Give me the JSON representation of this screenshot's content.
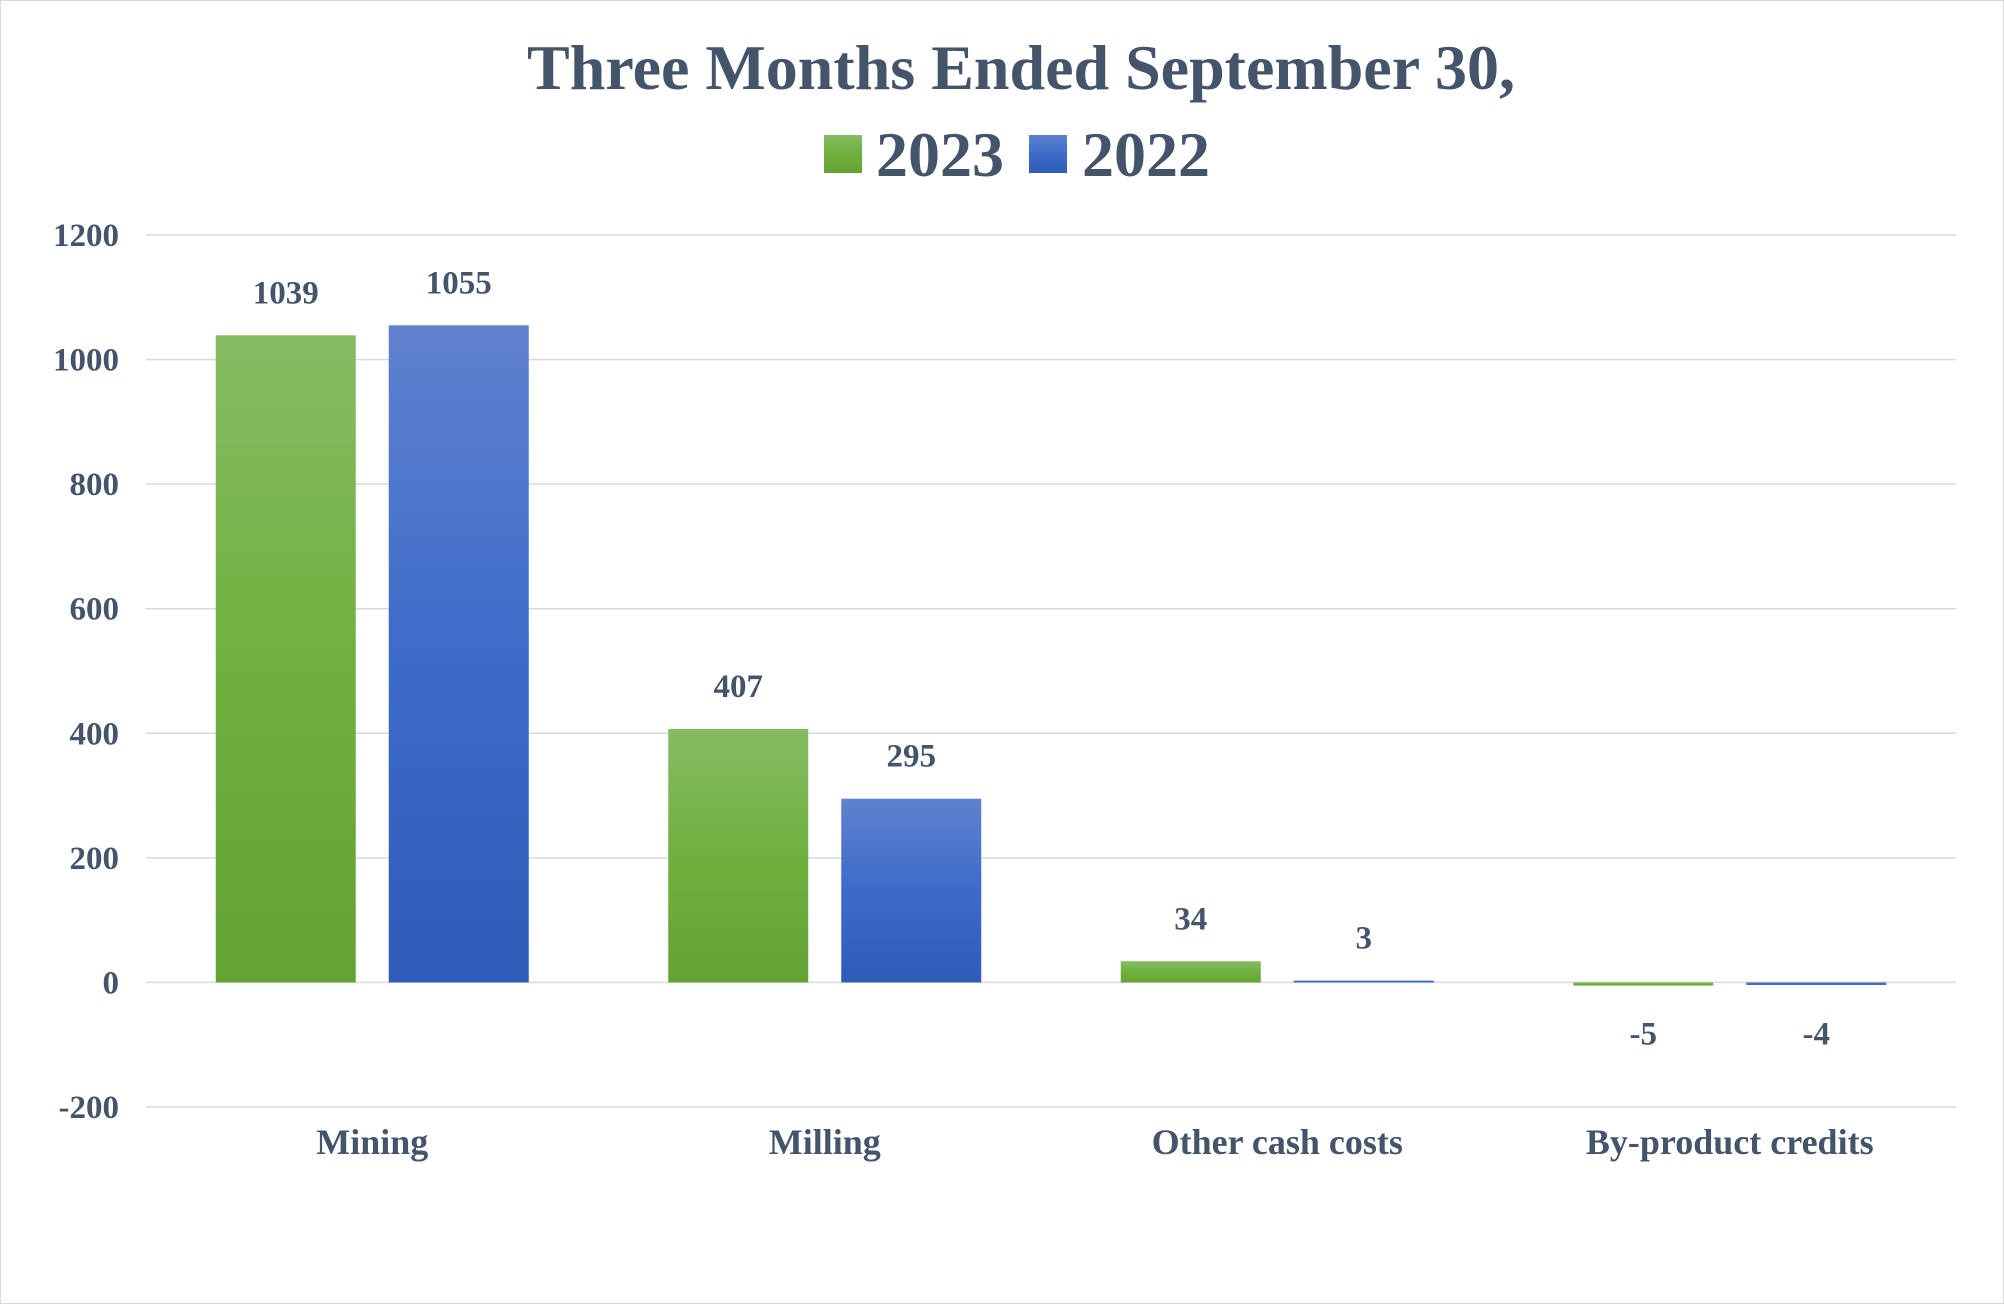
{
  "chart_data": {
    "type": "bar",
    "title_line1": "Three Months Ended September 30,",
    "categories": [
      "Mining",
      "Milling",
      "Other cash costs",
      "By-product credits"
    ],
    "series": [
      {
        "name": "2023",
        "values": [
          1039,
          407,
          34,
          -5
        ],
        "color": "#6aaa3a"
      },
      {
        "name": "2022",
        "values": [
          1055,
          295,
          3,
          -4
        ],
        "color": "#3a66c4"
      }
    ],
    "ylim": [
      -200,
      1200
    ],
    "yticks": [
      -200,
      0,
      200,
      400,
      600,
      800,
      1000,
      1200
    ],
    "grid": true,
    "legend_position": "top",
    "text_color": "#44546a",
    "grid_color": "#d9d9d9"
  }
}
